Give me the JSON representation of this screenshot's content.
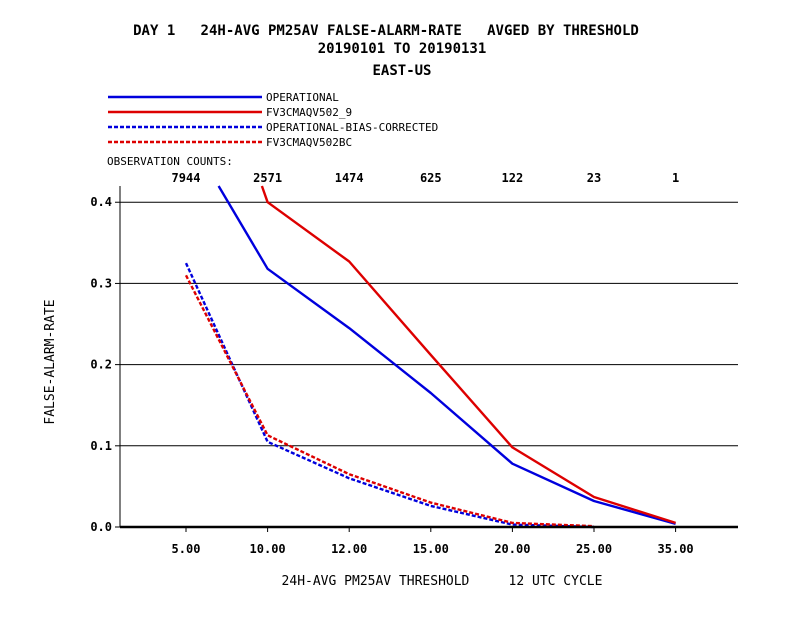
{
  "title": {
    "line1": "DAY 1   24H-AVG PM25AV FALSE-ALARM-RATE   AVGED BY THRESHOLD",
    "line2": "20190101 TO 20190131",
    "line3": "EAST-US"
  },
  "chart_data": {
    "type": "line",
    "xlabel": "24H-AVG PM25AV THRESHOLD     12 UTC CYCLE",
    "ylabel": "FALSE-ALARM-RATE",
    "ylim": [
      0,
      0.42
    ],
    "grid": true,
    "legend_placement": "top-left",
    "x_categories": [
      "5.00",
      "10.00",
      "12.00",
      "15.00",
      "20.00",
      "25.00",
      "35.00"
    ],
    "y_ticks": [
      "0.0",
      "0.1",
      "0.2",
      "0.3",
      "0.4"
    ],
    "observation_counts_label": "OBSERVATION COUNTS:",
    "observation_counts": [
      "7944",
      "2571",
      "1474",
      "625",
      "122",
      "23",
      "1"
    ],
    "series": [
      {
        "name": "OPERATIONAL",
        "color": "#0000dd",
        "dash": "solid",
        "points": [
          [
            0.4,
            0.42
          ],
          [
            1,
            0.318
          ],
          [
            2,
            0.245
          ],
          [
            3,
            0.165
          ],
          [
            4,
            0.078
          ],
          [
            5,
            0.032
          ],
          [
            6,
            0.004
          ]
        ]
      },
      {
        "name": "FV3CMAQV502_9",
        "color": "#dd0000",
        "dash": "solid",
        "points": [
          [
            0.93,
            0.42
          ],
          [
            1,
            0.4
          ],
          [
            2,
            0.327
          ],
          [
            3,
            0.212
          ],
          [
            4,
            0.098
          ],
          [
            5,
            0.037
          ],
          [
            6,
            0.005
          ]
        ]
      },
      {
        "name": "OPERATIONAL-BIAS-CORRECTED",
        "color": "#0000dd",
        "dash": "dashed",
        "points": [
          [
            0,
            0.325
          ],
          [
            1,
            0.105
          ],
          [
            2,
            0.06
          ],
          [
            3,
            0.026
          ],
          [
            4,
            0.003
          ],
          [
            5,
            0.0
          ]
        ]
      },
      {
        "name": "FV3CMAQV502BC",
        "color": "#dd0000",
        "dash": "dashed",
        "points": [
          [
            0,
            0.31
          ],
          [
            1,
            0.113
          ],
          [
            2,
            0.065
          ],
          [
            3,
            0.03
          ],
          [
            4,
            0.005
          ],
          [
            5,
            0.001
          ]
        ]
      }
    ]
  }
}
